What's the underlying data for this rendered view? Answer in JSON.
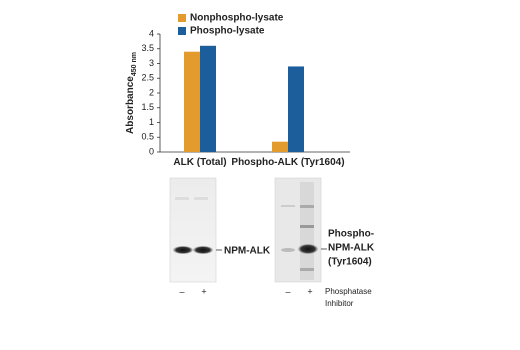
{
  "chart_data": {
    "type": "bar",
    "y_label": "Absorbance",
    "y_label_unit": "450 nm",
    "categories": [
      "ALK (Total)",
      "Phospho-ALK (Tyr1604)"
    ],
    "series": [
      {
        "name": "Nonphospho-lysate",
        "color": "#e39b2d",
        "values": [
          3.4,
          0.35
        ]
      },
      {
        "name": "Phospho-lysate",
        "color": "#1c5d9c",
        "values": [
          3.6,
          2.9
        ]
      }
    ],
    "ylim": [
      0,
      4
    ],
    "yticks": [
      0,
      0.5,
      1,
      1.5,
      2,
      2.5,
      3,
      3.5,
      4
    ],
    "legend": "top-left"
  },
  "blots": [
    {
      "label_lines": [
        "NPM-ALK"
      ],
      "lanes": [
        "–",
        "+"
      ]
    },
    {
      "label_lines": [
        "Phospho-",
        "NPM-ALK",
        "(Tyr1604)"
      ],
      "lanes": [
        "–",
        "+"
      ],
      "note_lines": [
        "Phosphatase",
        "Inhibitor"
      ]
    }
  ]
}
